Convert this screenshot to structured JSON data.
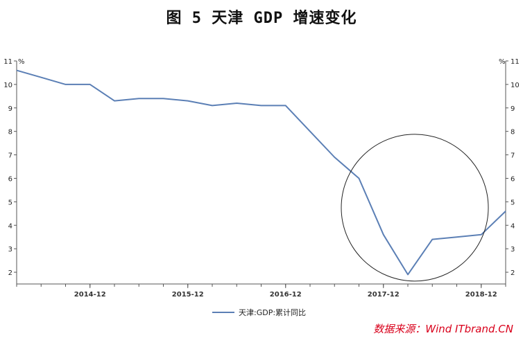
{
  "chart_data": {
    "type": "line",
    "title": "图 5   天津 GDP 增速变化",
    "unit_left": "%",
    "unit_right": "%",
    "y_ticks": [
      2,
      3,
      4,
      5,
      6,
      7,
      8,
      9,
      10,
      11
    ],
    "x_ticks": [
      "2014-12",
      "2015-12",
      "2016-12",
      "2017-12",
      "2018-12"
    ],
    "ylim": [
      1.5,
      11
    ],
    "grid": false,
    "legend_position": "bottom",
    "series": [
      {
        "name": "天津:GDP:累计同比",
        "color": "#5b7fb5",
        "x": [
          "2014-03",
          "2014-06",
          "2014-09",
          "2014-12",
          "2015-03",
          "2015-06",
          "2015-09",
          "2015-12",
          "2016-03",
          "2016-06",
          "2016-09",
          "2016-12",
          "2017-03",
          "2017-06",
          "2017-09",
          "2017-12",
          "2018-03",
          "2018-06",
          "2018-09",
          "2018-12",
          "2019-03"
        ],
        "values": [
          10.6,
          10.3,
          10.0,
          10.0,
          9.3,
          9.4,
          9.4,
          9.3,
          9.1,
          9.2,
          9.1,
          9.1,
          8.0,
          6.9,
          6.0,
          3.6,
          1.9,
          3.4,
          3.5,
          3.6,
          4.6
        ]
      }
    ],
    "annotation": "circle highlighting 2017-12 to 2019 decline and rebound"
  },
  "source": "数据来源：Wind ITbrand.CN"
}
